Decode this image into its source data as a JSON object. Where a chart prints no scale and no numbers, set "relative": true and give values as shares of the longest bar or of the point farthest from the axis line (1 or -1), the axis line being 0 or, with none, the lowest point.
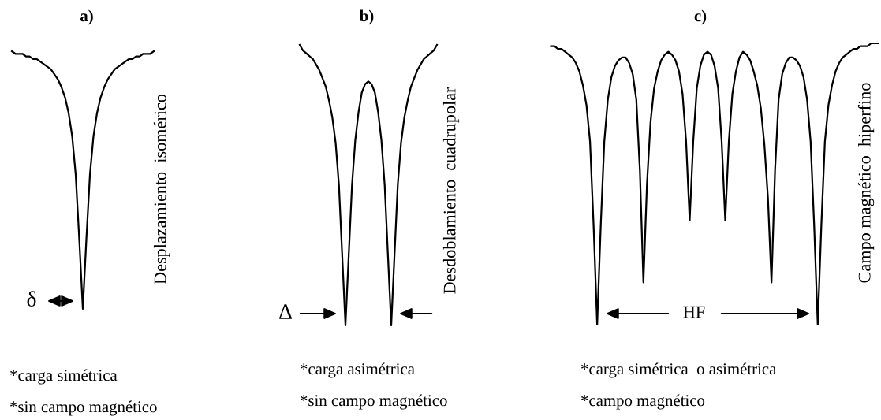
{
  "chart_data": [
    {
      "type": "line",
      "title": "a)",
      "relative": true,
      "tick_labels": false,
      "categories": [
        null,
        null,
        null,
        null,
        null,
        null,
        null,
        null,
        null,
        null,
        null,
        null,
        null,
        null,
        null,
        null,
        null,
        null,
        null,
        null,
        null,
        null,
        null,
        null,
        null,
        null,
        null,
        null,
        null,
        null,
        null,
        null,
        null,
        null,
        null,
        null,
        null,
        null,
        null,
        null,
        null
      ],
      "series": [
        {
          "color": "#000000",
          "values": [
            1.0,
            0.99,
            0.99,
            0.99,
            0.98,
            0.98,
            0.97,
            0.97,
            0.96,
            0.95,
            0.94,
            0.93,
            0.91,
            0.89,
            0.86,
            0.82,
            0.76,
            0.67,
            0.52,
            0.27,
            0,
            0.27,
            0.52,
            0.67,
            0.76,
            0.82,
            0.86,
            0.89,
            0.91,
            0.93,
            0.94,
            0.95,
            0.96,
            0.97,
            0.97,
            0.98,
            0.98,
            0.99,
            0.99,
            0.99,
            1.0
          ]
        }
      ],
      "annotations": [
        "δ",
        "Desplazamiento  isomérico",
        "*carga simétrica",
        "*sin campo magnético"
      ]
    },
    {
      "type": "line",
      "title": "b)",
      "relative": true,
      "tick_labels": false,
      "categories": [
        null,
        null,
        null,
        null,
        null,
        null,
        null,
        null,
        null,
        null,
        null,
        null,
        null,
        null,
        null,
        null,
        null,
        null,
        null,
        null,
        null,
        null,
        null,
        null,
        null,
        null,
        null,
        null,
        null,
        null,
        null,
        null,
        null,
        null,
        null,
        null,
        null,
        null,
        null,
        null,
        null,
        null,
        null
      ],
      "series": [
        {
          "color": "#000000",
          "values": [
            1.0,
            0.98,
            0.97,
            0.96,
            0.95,
            0.93,
            0.91,
            0.88,
            0.85,
            0.8,
            0.74,
            0.65,
            0.5,
            0.25,
            0,
            0.25,
            0.5,
            0.66,
            0.76,
            0.83,
            0.86,
            0.87,
            0.86,
            0.83,
            0.76,
            0.66,
            0.5,
            0.25,
            0,
            0.25,
            0.5,
            0.65,
            0.74,
            0.8,
            0.85,
            0.88,
            0.91,
            0.93,
            0.95,
            0.96,
            0.97,
            0.98,
            1.0
          ]
        }
      ],
      "annotations": [
        "Δ",
        "Desdoblamiento  cuadrupolar",
        "*carga asimétrica",
        "*sin campo magnético"
      ]
    },
    {
      "type": "line",
      "title": "c)",
      "relative": true,
      "tick_labels": false,
      "categories": [
        null,
        null,
        null,
        null,
        null,
        null,
        null,
        null,
        null,
        null,
        null,
        null,
        null,
        null,
        null,
        null,
        null,
        null,
        null,
        null,
        null,
        null,
        null,
        null,
        null,
        null,
        null,
        null,
        null,
        null,
        null,
        null,
        null,
        null,
        null,
        null,
        null,
        null,
        null,
        null,
        null,
        null,
        null,
        null,
        null,
        null,
        null,
        null,
        null,
        null,
        null,
        null,
        null,
        null,
        null,
        null,
        null,
        null,
        null,
        null,
        null,
        null,
        null,
        null,
        null,
        null,
        null,
        null,
        null,
        null,
        null,
        null,
        null,
        null,
        null,
        null,
        null,
        null,
        null,
        null,
        null,
        null,
        null,
        null,
        null,
        null,
        null,
        null,
        null,
        null,
        null,
        null,
        null
      ],
      "series": [
        {
          "color": "#000000",
          "values": [
            0.99,
            0.99,
            0.98,
            0.98,
            0.97,
            0.96,
            0.95,
            0.93,
            0.9,
            0.85,
            0.78,
            0.65,
            0.35,
            0,
            0.35,
            0.65,
            0.8,
            0.88,
            0.92,
            0.94,
            0.95,
            0.95,
            0.93,
            0.89,
            0.8,
            0.55,
            0.15,
            0.5,
            0.72,
            0.84,
            0.9,
            0.94,
            0.96,
            0.97,
            0.96,
            0.94,
            0.9,
            0.82,
            0.65,
            0.37,
            0.65,
            0.84,
            0.92,
            0.96,
            0.97,
            0.96,
            0.92,
            0.84,
            0.65,
            0.37,
            0.65,
            0.82,
            0.9,
            0.95,
            0.97,
            0.96,
            0.94,
            0.9,
            0.85,
            0.77,
            0.64,
            0.45,
            0.15,
            0.55,
            0.8,
            0.89,
            0.93,
            0.95,
            0.95,
            0.94,
            0.92,
            0.88,
            0.8,
            0.65,
            0.35,
            0,
            0.35,
            0.65,
            0.78,
            0.85,
            0.9,
            0.93,
            0.95,
            0.96,
            0.97,
            0.98,
            0.98,
            0.99,
            0.99,
            0.99,
            1.0,
            1.0,
            1.0
          ]
        }
      ],
      "annotations": [
        "HF",
        "Campo magnético  hiperfino",
        "*carga simétrica  o asimétrica",
        "*campo magnético"
      ]
    }
  ]
}
